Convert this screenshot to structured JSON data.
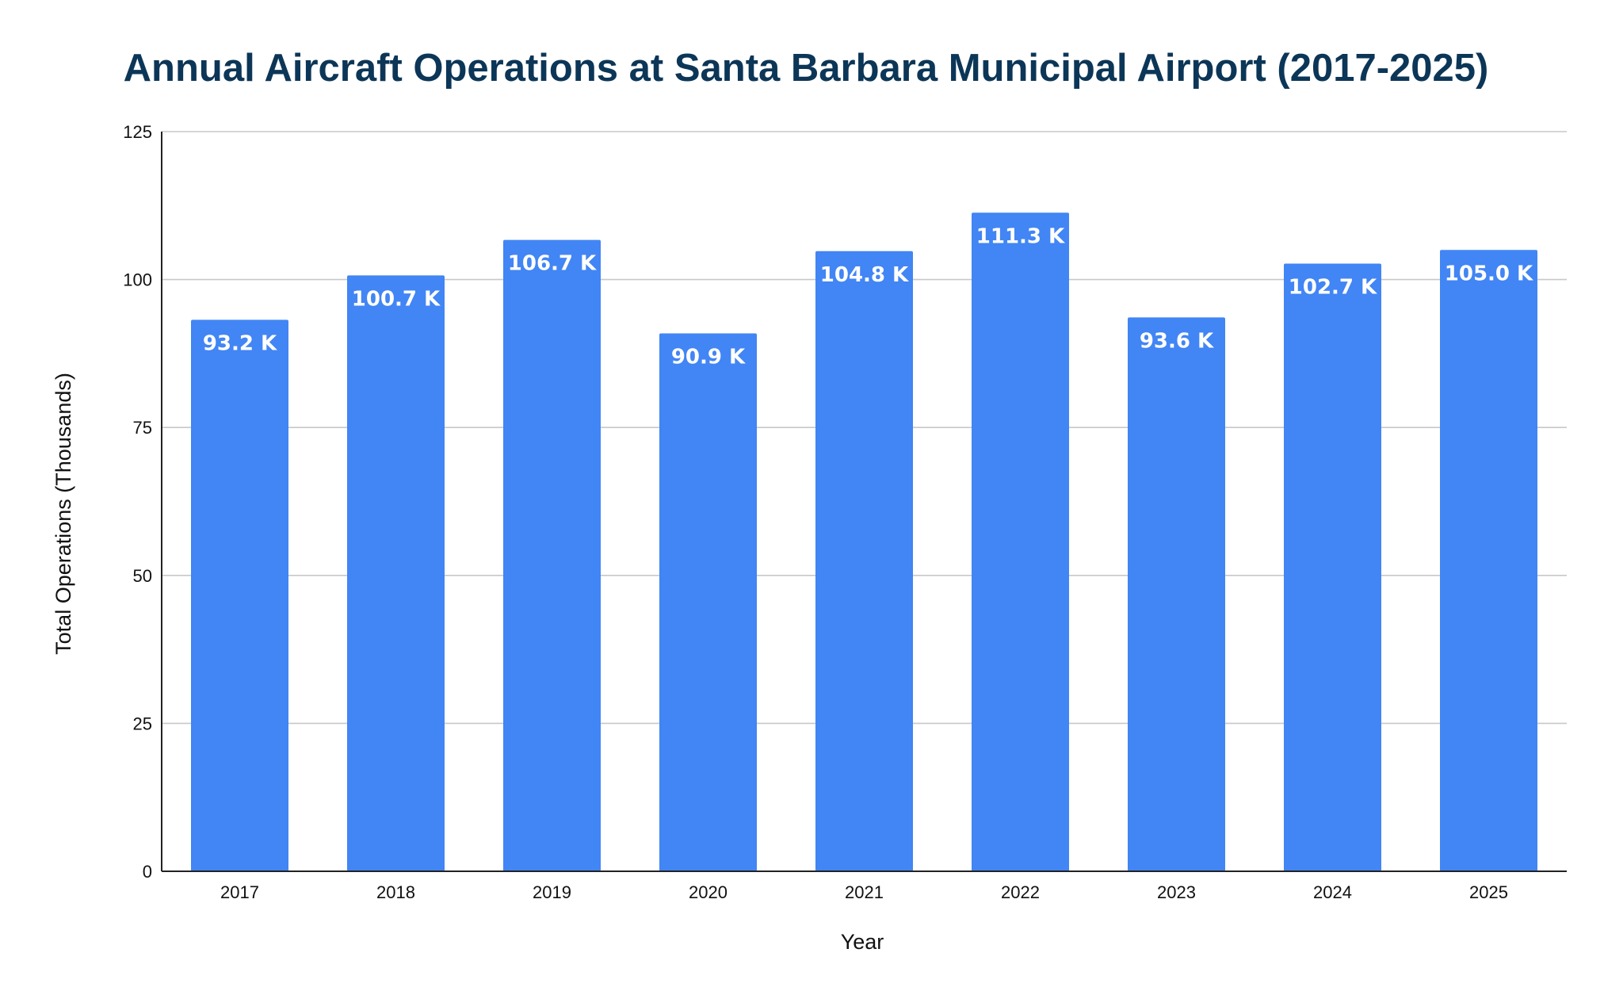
{
  "chart_data": {
    "type": "bar",
    "title": "Annual Aircraft Operations at Santa Barbara Municipal Airport (2017-2025)",
    "xlabel": "Year",
    "ylabel": "Total Operations (Thousands)",
    "categories": [
      "2017",
      "2018",
      "2019",
      "2020",
      "2021",
      "2022",
      "2023",
      "2024",
      "2025"
    ],
    "values": [
      93.2,
      100.7,
      106.7,
      90.9,
      104.8,
      111.3,
      93.6,
      102.7,
      105.0
    ],
    "data_labels": [
      "93.2 K",
      "100.7 K",
      "106.7 K",
      "90.9 K",
      "104.8 K",
      "111.3 K",
      "93.6 K",
      "102.7 K",
      "105.0 K"
    ],
    "ylim": [
      0,
      125
    ],
    "yticks": [
      0,
      25,
      50,
      75,
      100,
      125
    ],
    "grid": true,
    "legend": "none",
    "bar_color": "#4285f4",
    "title_color": "#0c3657"
  }
}
